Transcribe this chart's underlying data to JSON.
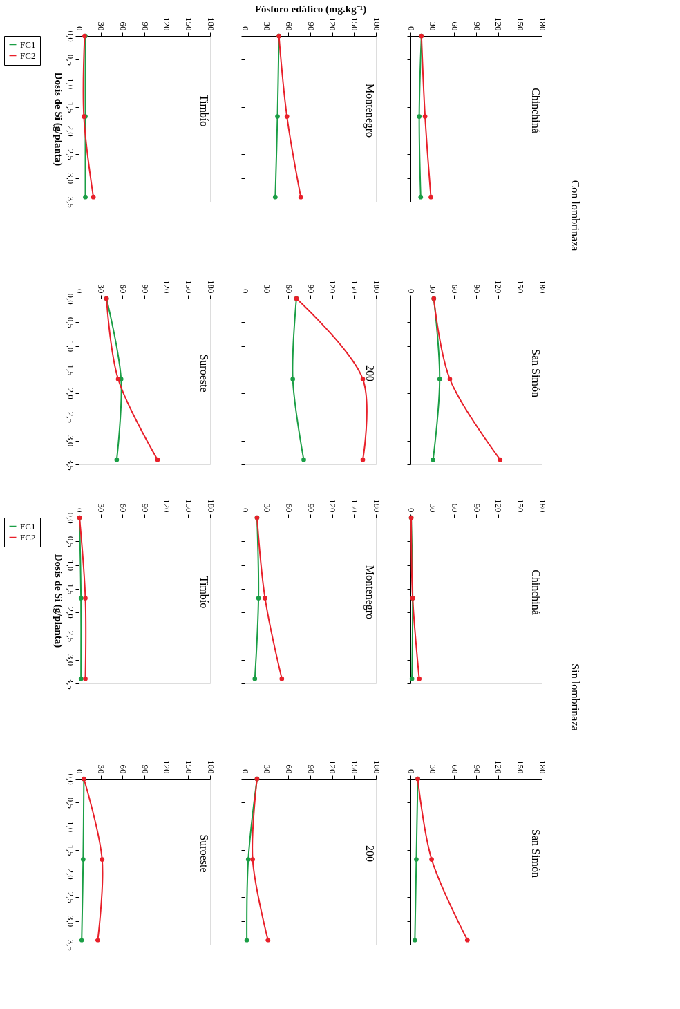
{
  "chart_data": [
    {
      "type": "line",
      "title": "Chinchiná",
      "annotations": [
        "Con lombrinaza"
      ],
      "xlim": [
        0,
        180
      ],
      "xticks": [
        0,
        30,
        60,
        90,
        120,
        150,
        180
      ],
      "ylim": [
        3.5,
        0
      ],
      "yticks": [
        {
          "value": 0,
          "label": null
        },
        {
          "value": 0.5,
          "label": null
        },
        {
          "value": 1,
          "label": null
        },
        {
          "value": 1.5,
          "label": null
        },
        {
          "value": 2,
          "label": null
        },
        {
          "value": 2.5,
          "label": null
        },
        {
          "value": 3,
          "label": null
        },
        {
          "value": 3.5,
          "label": null
        }
      ],
      "tick_labels": "x",
      "marker": "circle",
      "series": [
        {
          "color": "#1a9e45",
          "x": [
            15,
            12,
            14
          ],
          "values": [
            0,
            1.7,
            3.4
          ]
        },
        {
          "color": "#e8202a",
          "x": [
            15,
            20,
            28
          ],
          "values": [
            0,
            1.7,
            3.4
          ]
        }
      ]
    },
    {
      "type": "line",
      "title": "San Simón",
      "xlim": [
        0,
        180
      ],
      "xticks": [
        0,
        30,
        60,
        90,
        120,
        150,
        180
      ],
      "ylim": [
        3.5,
        0
      ],
      "yticks": [
        {
          "value": 0,
          "label": null
        },
        {
          "value": 0.5,
          "label": null
        },
        {
          "value": 1,
          "label": null
        },
        {
          "value": 1.5,
          "label": null
        },
        {
          "value": 2,
          "label": null
        },
        {
          "value": 2.5,
          "label": null
        },
        {
          "value": 3,
          "label": null
        },
        {
          "value": 3.5,
          "label": null
        }
      ],
      "tick_labels": "x",
      "marker": "circle",
      "series": [
        {
          "color": "#1a9e45",
          "x": [
            32,
            40,
            31
          ],
          "values": [
            0,
            1.7,
            3.4
          ]
        },
        {
          "color": "#e8202a",
          "x": [
            32,
            54,
            123
          ],
          "values": [
            0,
            1.7,
            3.4
          ]
        }
      ]
    },
    {
      "type": "line",
      "title": "Montenegro",
      "xlabel": "Fósforo edáfico (mg.kg⁻¹)",
      "xlim": [
        0,
        180
      ],
      "xticks": [
        0,
        30,
        60,
        90,
        120,
        150,
        180
      ],
      "ylim": [
        3.5,
        0
      ],
      "yticks": [
        {
          "value": 0,
          "label": null
        },
        {
          "value": 0.5,
          "label": null
        },
        {
          "value": 1,
          "label": null
        },
        {
          "value": 1.5,
          "label": null
        },
        {
          "value": 2,
          "label": null
        },
        {
          "value": 2.5,
          "label": null
        },
        {
          "value": 3,
          "label": null
        },
        {
          "value": 3.5,
          "label": null
        }
      ],
      "tick_labels": "x",
      "marker": "circle",
      "series": [
        {
          "color": "#1a9e45",
          "x": [
            47,
            45,
            42
          ],
          "values": [
            0,
            1.7,
            3.4
          ]
        },
        {
          "color": "#e8202a",
          "x": [
            47,
            58,
            77
          ],
          "values": [
            0,
            1.7,
            3.4
          ]
        }
      ]
    },
    {
      "type": "line",
      "title": "200",
      "xlim": [
        0,
        180
      ],
      "xticks": [
        0,
        30,
        60,
        90,
        120,
        150,
        180
      ],
      "ylim": [
        3.5,
        0
      ],
      "yticks": [
        {
          "value": 0,
          "label": null
        },
        {
          "value": 0.5,
          "label": null
        },
        {
          "value": 1,
          "label": null
        },
        {
          "value": 1.5,
          "label": null
        },
        {
          "value": 2,
          "label": null
        },
        {
          "value": 2.5,
          "label": null
        },
        {
          "value": 3,
          "label": null
        },
        {
          "value": 3.5,
          "label": null
        }
      ],
      "tick_labels": "x",
      "marker": "circle",
      "series": [
        {
          "color": "#1a9e45",
          "x": [
            71,
            66,
            81
          ],
          "values": [
            0,
            1.7,
            3.4
          ]
        },
        {
          "color": "#e8202a",
          "x": [
            71,
            162,
            162
          ],
          "values": [
            0,
            1.7,
            3.4
          ]
        }
      ]
    },
    {
      "type": "line",
      "title": "Timbío",
      "ylabel": "Dosis de Si (g/planta)",
      "legend": "left",
      "xlim": [
        0,
        180
      ],
      "xticks": [
        0,
        30,
        60,
        90,
        120,
        150,
        180
      ],
      "ylim": [
        3.5,
        0
      ],
      "yticks": [
        {
          "value": 0,
          "label": "0,0"
        },
        {
          "value": 0.5,
          "label": "0,5"
        },
        {
          "value": 1,
          "label": "1,0"
        },
        {
          "value": 1.5,
          "label": "1,5"
        },
        {
          "value": 2,
          "label": "2,0"
        },
        {
          "value": 2.5,
          "label": "2,5"
        },
        {
          "value": 3,
          "label": "3,0"
        },
        {
          "value": 3.5,
          "label": "3,5"
        }
      ],
      "marker": "circle",
      "series": [
        {
          "name": "FC1",
          "color": "#1a9e45",
          "x": [
            9,
            9,
            9
          ],
          "values": [
            0,
            1.7,
            3.4
          ]
        },
        {
          "name": "FC2",
          "color": "#e8202a",
          "x": [
            8,
            7,
            20
          ],
          "values": [
            0,
            1.7,
            3.4
          ]
        }
      ]
    },
    {
      "type": "line",
      "title": "Suroeste",
      "xlim": [
        0,
        180
      ],
      "xticks": [
        0,
        30,
        60,
        90,
        120,
        150,
        180
      ],
      "ylim": [
        3.5,
        0
      ],
      "yticks": [
        {
          "value": 0,
          "label": "0,0"
        },
        {
          "value": 0.5,
          "label": "0,5"
        },
        {
          "value": 1,
          "label": "1,0"
        },
        {
          "value": 1.5,
          "label": "1,5"
        },
        {
          "value": 2,
          "label": "2,0"
        },
        {
          "value": 2.5,
          "label": "2,5"
        },
        {
          "value": 3,
          "label": "3,0"
        },
        {
          "value": 3.5,
          "label": "3,5"
        }
      ],
      "marker": "circle",
      "series": [
        {
          "color": "#1a9e45",
          "x": [
            38,
            58,
            52
          ],
          "values": [
            0,
            1.7,
            3.4
          ]
        },
        {
          "color": "#e8202a",
          "x": [
            38,
            54,
            108
          ],
          "values": [
            0,
            1.7,
            3.4
          ]
        }
      ]
    },
    {
      "type": "line",
      "title": "Chinchiná",
      "annotations": [
        "Sin lombrinaza"
      ],
      "xlim": [
        0,
        180
      ],
      "xticks": [
        0,
        30,
        60,
        90,
        120,
        150,
        180
      ],
      "ylim": [
        3.5,
        0
      ],
      "yticks": [
        {
          "value": 0,
          "label": null
        },
        {
          "value": 0.5,
          "label": null
        },
        {
          "value": 1,
          "label": null
        },
        {
          "value": 1.5,
          "label": null
        },
        {
          "value": 2,
          "label": null
        },
        {
          "value": 2.5,
          "label": null
        },
        {
          "value": 3,
          "label": null
        },
        {
          "value": 3.5,
          "label": null
        }
      ],
      "tick_labels": "x",
      "marker": "circle",
      "series": [
        {
          "color": "#1a9e45",
          "x": [
            1,
            3,
            2
          ],
          "values": [
            0,
            1.7,
            3.4
          ]
        },
        {
          "color": "#e8202a",
          "x": [
            1,
            3,
            12
          ],
          "values": [
            0,
            1.7,
            3.4
          ]
        }
      ]
    },
    {
      "type": "line",
      "title": "San Simón",
      "xlim": [
        0,
        180
      ],
      "xticks": [
        0,
        30,
        60,
        90,
        120,
        150,
        180
      ],
      "ylim": [
        3.5,
        0
      ],
      "yticks": [
        {
          "value": 0,
          "label": null
        },
        {
          "value": 0.5,
          "label": null
        },
        {
          "value": 1,
          "label": null
        },
        {
          "value": 1.5,
          "label": null
        },
        {
          "value": 2,
          "label": null
        },
        {
          "value": 2.5,
          "label": null
        },
        {
          "value": 3,
          "label": null
        },
        {
          "value": 3.5,
          "label": null
        }
      ],
      "tick_labels": "x",
      "marker": "circle",
      "series": [
        {
          "color": "#1a9e45",
          "x": [
            10,
            8,
            6
          ],
          "values": [
            0,
            1.7,
            3.4
          ]
        },
        {
          "color": "#e8202a",
          "x": [
            10,
            29,
            78
          ],
          "values": [
            0,
            1.7,
            3.4
          ]
        }
      ]
    },
    {
      "type": "line",
      "title": "Montenegro",
      "xlim": [
        0,
        180
      ],
      "xticks": [
        0,
        30,
        60,
        90,
        120,
        150,
        180
      ],
      "ylim": [
        3.5,
        0
      ],
      "yticks": [
        {
          "value": 0,
          "label": null
        },
        {
          "value": 0.5,
          "label": null
        },
        {
          "value": 1,
          "label": null
        },
        {
          "value": 1.5,
          "label": null
        },
        {
          "value": 2,
          "label": null
        },
        {
          "value": 2.5,
          "label": null
        },
        {
          "value": 3,
          "label": null
        },
        {
          "value": 3.5,
          "label": null
        }
      ],
      "tick_labels": "x",
      "marker": "circle",
      "series": [
        {
          "color": "#1a9e45",
          "x": [
            17,
            19,
            14
          ],
          "values": [
            0,
            1.7,
            3.4
          ]
        },
        {
          "color": "#e8202a",
          "x": [
            17,
            28,
            51
          ],
          "values": [
            0,
            1.7,
            3.4
          ]
        }
      ]
    },
    {
      "type": "line",
      "title": "200",
      "xlim": [
        0,
        180
      ],
      "xticks": [
        0,
        30,
        60,
        90,
        120,
        150,
        180
      ],
      "ylim": [
        3.5,
        0
      ],
      "yticks": [
        {
          "value": 0,
          "label": null
        },
        {
          "value": 0.5,
          "label": null
        },
        {
          "value": 1,
          "label": null
        },
        {
          "value": 1.5,
          "label": null
        },
        {
          "value": 2,
          "label": null
        },
        {
          "value": 2.5,
          "label": null
        },
        {
          "value": 3,
          "label": null
        },
        {
          "value": 3.5,
          "label": null
        }
      ],
      "tick_labels": "x",
      "marker": "circle",
      "series": [
        {
          "color": "#1a9e45",
          "x": [
            17,
            5,
            3
          ],
          "values": [
            0,
            1.7,
            3.4
          ]
        },
        {
          "color": "#e8202a",
          "x": [
            17,
            11,
            32
          ],
          "values": [
            0,
            1.7,
            3.4
          ]
        }
      ]
    },
    {
      "type": "line",
      "title": "Timbío",
      "ylabel": "Dosis de Si (g/planta)",
      "legend": "left",
      "xlim": [
        0,
        180
      ],
      "xticks": [
        0,
        30,
        60,
        90,
        120,
        150,
        180
      ],
      "ylim": [
        3.5,
        0
      ],
      "yticks": [
        {
          "value": 0,
          "label": "0,0"
        },
        {
          "value": 0.5,
          "label": "0,5"
        },
        {
          "value": 1,
          "label": "1,0"
        },
        {
          "value": 1.5,
          "label": "1,5"
        },
        {
          "value": 2,
          "label": "2,0"
        },
        {
          "value": 2.5,
          "label": "2,5"
        },
        {
          "value": 3,
          "label": "3,0"
        },
        {
          "value": 3.5,
          "label": "3,5"
        }
      ],
      "marker": "circle",
      "series": [
        {
          "name": "FC1",
          "color": "#1a9e45",
          "x": [
            1,
            3,
            3
          ],
          "values": [
            0,
            1.7,
            3.4
          ]
        },
        {
          "name": "FC2",
          "color": "#e8202a",
          "x": [
            1,
            9,
            9
          ],
          "values": [
            0,
            1.7,
            3.4
          ]
        }
      ]
    },
    {
      "type": "line",
      "title": "Suroeste",
      "xlim": [
        0,
        180
      ],
      "xticks": [
        0,
        30,
        60,
        90,
        120,
        150,
        180
      ],
      "ylim": [
        3.5,
        0
      ],
      "yticks": [
        {
          "value": 0,
          "label": "0,0"
        },
        {
          "value": 0.5,
          "label": "0,5"
        },
        {
          "value": 1,
          "label": "1,0"
        },
        {
          "value": 1.5,
          "label": "1,5"
        },
        {
          "value": 2,
          "label": "2,0"
        },
        {
          "value": 2.5,
          "label": "2,5"
        },
        {
          "value": 3,
          "label": "3,0"
        },
        {
          "value": 3.5,
          "label": "3,5"
        }
      ],
      "marker": "circle",
      "series": [
        {
          "color": "#1a9e45",
          "x": [
            7,
            6,
            4
          ],
          "values": [
            0,
            1.7,
            3.4
          ]
        },
        {
          "color": "#e8202a",
          "x": [
            7,
            32,
            26
          ],
          "values": [
            0,
            1.7,
            3.4
          ]
        }
      ]
    }
  ]
}
